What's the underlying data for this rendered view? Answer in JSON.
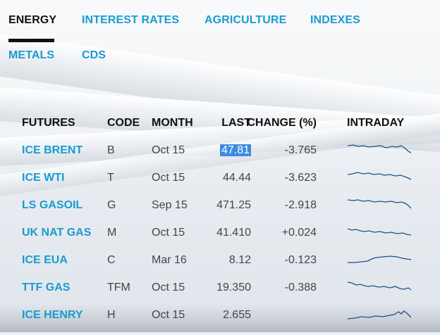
{
  "tabs": [
    {
      "label": "ENERGY",
      "active": true
    },
    {
      "label": "INTEREST RATES",
      "active": false
    },
    {
      "label": "AGRICULTURE",
      "active": false
    },
    {
      "label": "INDEXES",
      "active": false
    },
    {
      "label": "METALS",
      "active": false
    },
    {
      "label": "CDS",
      "active": false
    }
  ],
  "table": {
    "headers": {
      "futures": "FUTURES",
      "code": "CODE",
      "month": "MONTH",
      "last": "LAST",
      "change": "CHANGE (%)",
      "intraday": "INTRADAY"
    },
    "rows": [
      {
        "name": "ICE BRENT",
        "code": "B",
        "month": "Oct 15",
        "last": "47.81",
        "change": "-3.765",
        "last_selected": true
      },
      {
        "name": "ICE WTI",
        "code": "T",
        "month": "Oct 15",
        "last": "44.44",
        "change": "-3.623"
      },
      {
        "name": "LS GASOIL",
        "code": "G",
        "month": "Sep 15",
        "last": "471.25",
        "change": "-2.918"
      },
      {
        "name": "UK NAT GAS",
        "code": "M",
        "month": "Oct 15",
        "last": "41.410",
        "change": "+0.024"
      },
      {
        "name": "ICE EUA",
        "code": "C",
        "month": "Mar 16",
        "last": "8.12",
        "change": "-0.123"
      },
      {
        "name": "TTF GAS",
        "code": "TFM",
        "month": "Oct 15",
        "last": "19.350",
        "change": "-0.388"
      },
      {
        "name": "ICE HENRY",
        "code": "H",
        "month": "Oct 15",
        "last": "2.655",
        "change": ""
      }
    ]
  },
  "colors": {
    "link": "#1a9bd0",
    "active_tab": "#111111",
    "sparkline": "#1f4f8c",
    "selection": "#3b8ce0"
  }
}
